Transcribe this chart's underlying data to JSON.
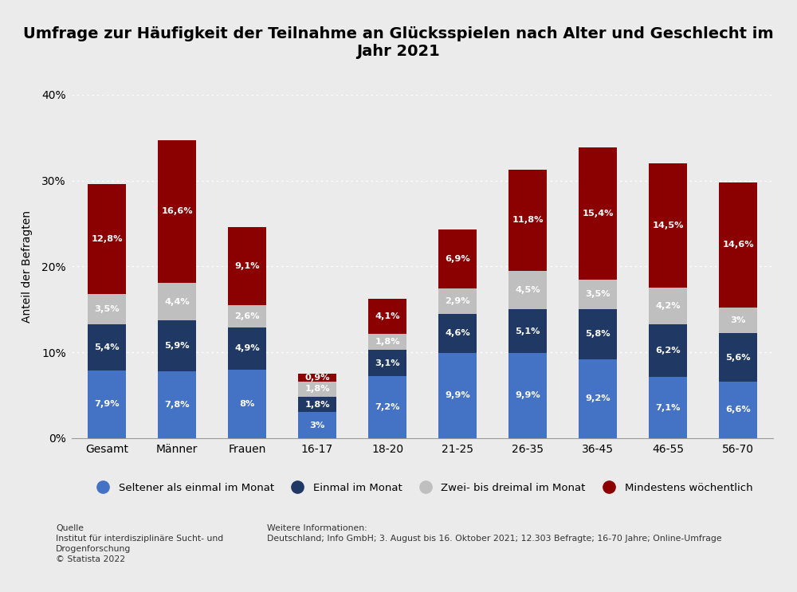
{
  "title": "Umfrage zur Häufigkeit der Teilnahme an Glücksspielen nach Alter und Geschlecht im\nJahr 2021",
  "ylabel": "Anteil der Befragten",
  "categories": [
    "Gesamt",
    "Männer",
    "Frauen",
    "16-17",
    "18-20",
    "21-25",
    "26-35",
    "36-45",
    "46-55",
    "56-70"
  ],
  "series": {
    "Seltener als einmal im Monat": [
      7.9,
      7.8,
      8.0,
      3.0,
      7.2,
      9.9,
      9.9,
      9.2,
      7.1,
      6.6
    ],
    "Einmal im Monat": [
      5.4,
      5.9,
      4.9,
      1.8,
      3.1,
      4.6,
      5.1,
      5.8,
      6.2,
      5.6
    ],
    "Zwei- bis dreimal im Monat": [
      3.5,
      4.4,
      2.6,
      1.8,
      1.8,
      2.9,
      4.5,
      3.5,
      4.2,
      3.0
    ],
    "Mindestens wöchentlich": [
      12.8,
      16.6,
      9.1,
      0.9,
      4.1,
      6.9,
      11.8,
      15.4,
      14.5,
      14.6
    ]
  },
  "colors": {
    "Seltener als einmal im Monat": "#4472C4",
    "Einmal im Monat": "#1F3864",
    "Zwei- bis dreimal im Monat": "#BFBFBF",
    "Mindestens wöchentlich": "#8B0000"
  },
  "ylim": [
    0,
    40
  ],
  "yticks": [
    0,
    10,
    20,
    30,
    40
  ],
  "background_color": "#EBEBEB",
  "plot_bg_color": "#EBEBEB",
  "title_fontsize": 14,
  "source_text": "Quelle\nInstitut für interdisziplinäre Sucht- und\nDrogenforschung\n© Statista 2022",
  "info_text": "Weitere Informationen:\nDeutschland; Info GmbH; 3. August bis 16. Oktober 2021; 12.303 Befragte; 16-70 Jahre; Online-Umfrage"
}
